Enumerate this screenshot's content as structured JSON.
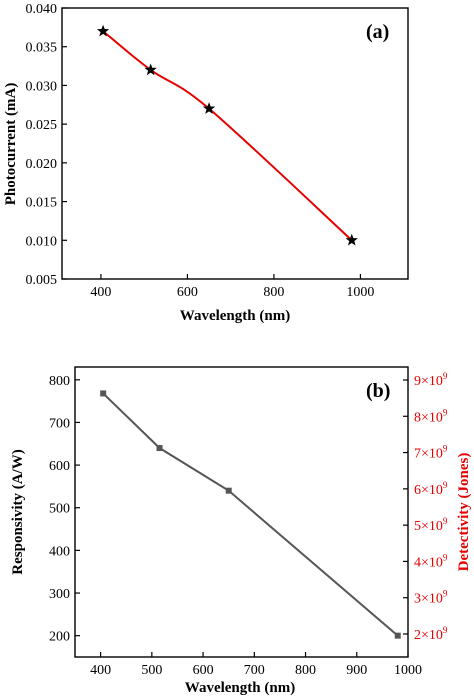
{
  "chart_data": [
    {
      "type": "line",
      "panel_label": "(a)",
      "xlabel": "Wavelength (nm)",
      "ylabel": "Photocurrent (mA)",
      "xlim": [
        310,
        1110
      ],
      "ylim": [
        0.005,
        0.04
      ],
      "x_ticks": [
        400,
        600,
        800,
        1000
      ],
      "x_tick_labels": [
        "400",
        "600",
        "800",
        "1000"
      ],
      "y_ticks": [
        0.005,
        0.01,
        0.015,
        0.02,
        0.025,
        0.03,
        0.035,
        0.04
      ],
      "y_tick_labels": [
        "0.005",
        "0.010",
        "0.015",
        "0.020",
        "0.025",
        "0.030",
        "0.035",
        "0.040"
      ],
      "marker": "star",
      "line_color": "#e60000",
      "marker_color": "#000000",
      "series": [
        {
          "x": [
            405,
            515,
            650,
            980
          ],
          "values": [
            0.037,
            0.032,
            0.027,
            0.01
          ]
        }
      ],
      "grid": false
    },
    {
      "type": "line",
      "panel_label": "(b)",
      "xlabel": "Wavelength (nm)",
      "ylabel": "Responsivity (A/W)",
      "y2label": "Detectivity (Jones)",
      "xlim": [
        350,
        1000
      ],
      "ylim": [
        150,
        830
      ],
      "x_ticks": [
        400,
        500,
        600,
        700,
        800,
        900,
        1000
      ],
      "x_tick_labels": [
        "400",
        "500",
        "600",
        "700",
        "800",
        "900",
        "1000"
      ],
      "y_ticks": [
        200,
        300,
        400,
        500,
        600,
        700,
        800
      ],
      "y_tick_labels": [
        "200",
        "300",
        "400",
        "500",
        "600",
        "700",
        "800"
      ],
      "y2_ticks": [
        "2×10",
        "3×10",
        "4×10",
        "5×10",
        "6×10",
        "7×10",
        "8×10",
        "9×10"
      ],
      "y2_tick_exponent": "9",
      "y2_color": "#e60000",
      "marker": "square",
      "line_color": "#555555",
      "series": [
        {
          "x": [
            405,
            515,
            650,
            980
          ],
          "values": [
            768,
            640,
            540,
            200
          ]
        }
      ],
      "grid": false
    }
  ]
}
